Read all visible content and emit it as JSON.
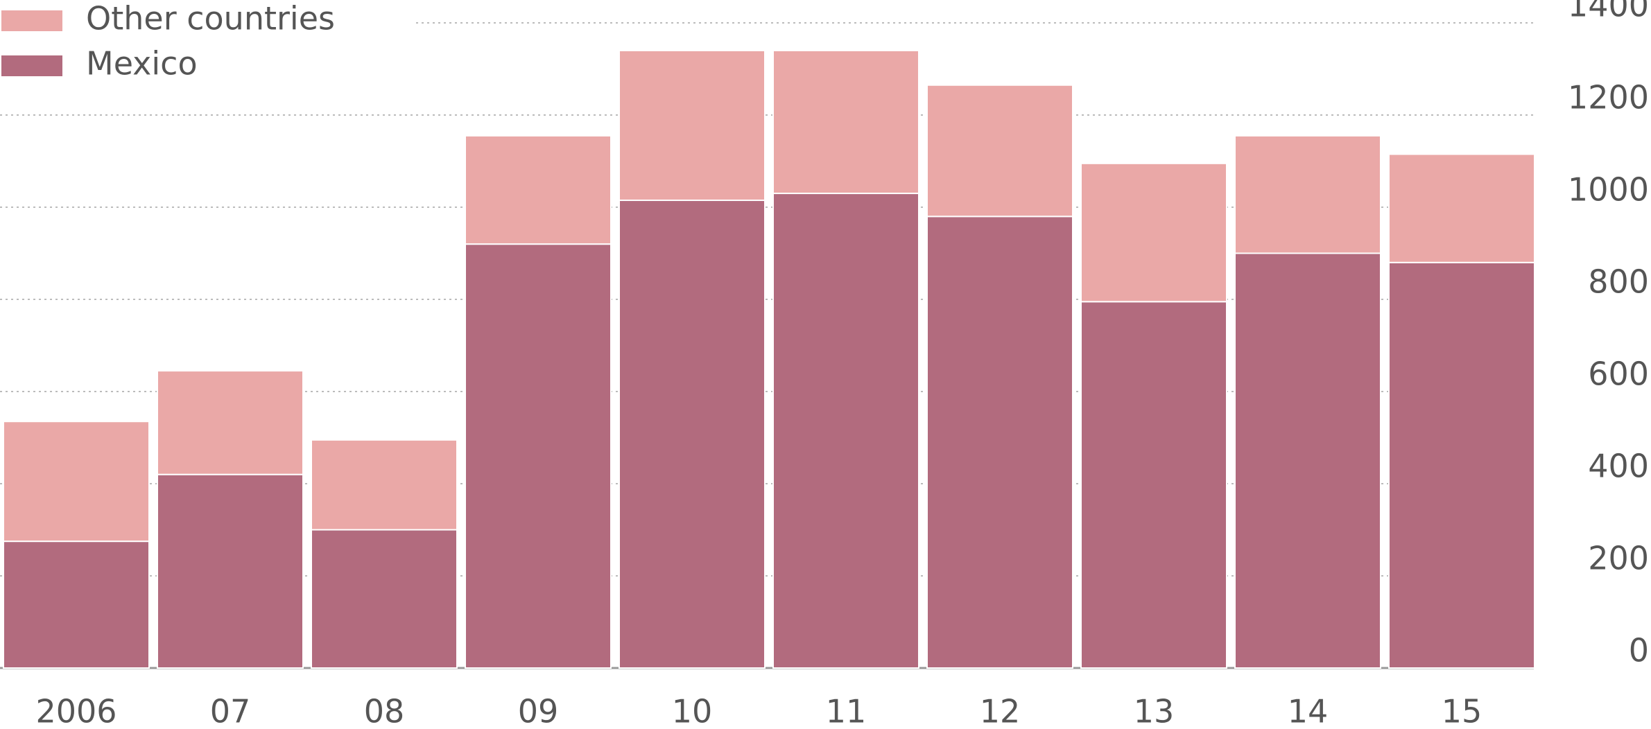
{
  "chart_data": {
    "type": "stacked_bar",
    "categories": [
      "2006",
      "07",
      "08",
      "09",
      "10",
      "11",
      "12",
      "13",
      "14",
      "15"
    ],
    "series": [
      {
        "name": "Mexico",
        "color": "#b26b7e",
        "values": [
          275,
          420,
          300,
          920,
          1015,
          1030,
          980,
          795,
          900,
          880
        ]
      },
      {
        "name": "Other countries",
        "color": "#eaa8a7",
        "values": [
          260,
          225,
          195,
          235,
          325,
          310,
          285,
          300,
          255,
          235
        ]
      }
    ],
    "ylim": [
      0,
      1400
    ],
    "yticks": [
      0,
      200,
      400,
      600,
      800,
      1000,
      1200,
      1400
    ],
    "grid": true,
    "legend": "top-left"
  }
}
